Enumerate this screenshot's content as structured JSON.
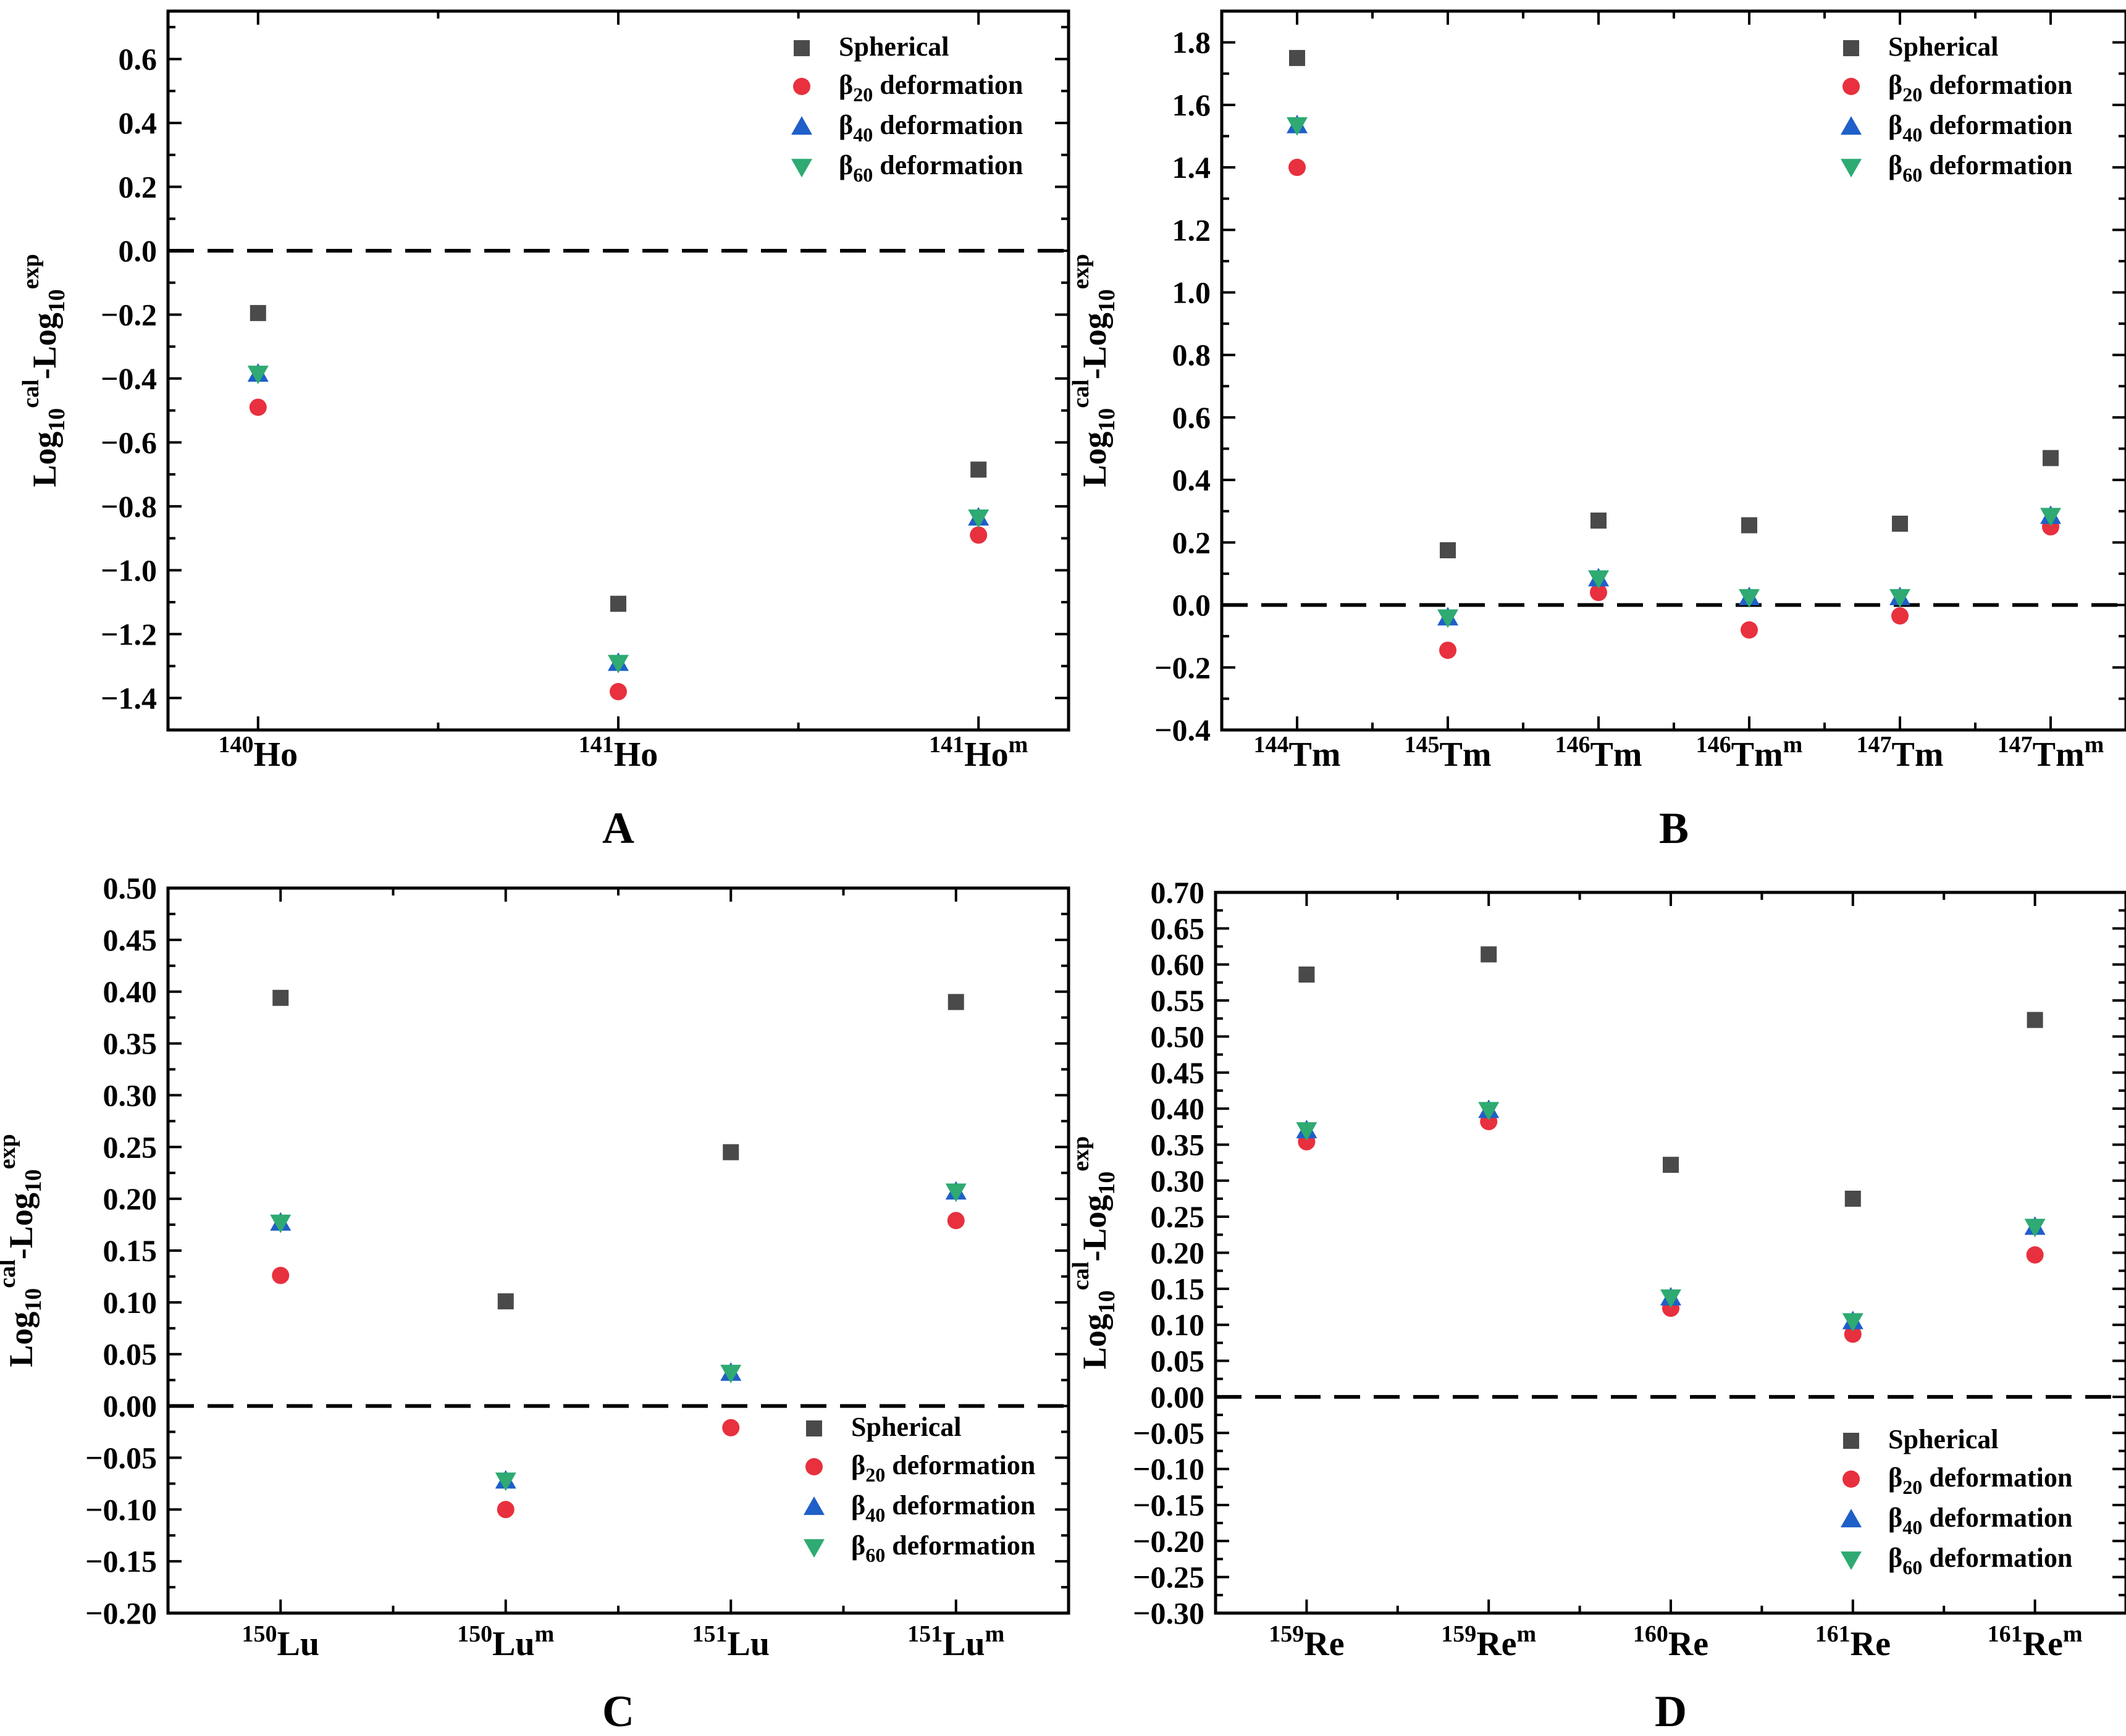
{
  "colors": {
    "spherical": "#4a4a4a",
    "beta20": "#e8303e",
    "beta40": "#1f5fc8",
    "beta60": "#2eaa72"
  },
  "legend": {
    "spherical": "Spherical",
    "beta_symbol": "β",
    "beta20_sub": "20",
    "beta40_sub": "40",
    "beta60_sub": "60",
    "deformation": " deformation"
  },
  "ylabel": {
    "part1": "Log",
    "sub1": "10",
    "sup1": "cal",
    "part2": "-Log",
    "sub2": "10",
    "sup2": "exp"
  },
  "chart_data": [
    {
      "panel": "A",
      "type": "scatter",
      "ylim": [
        -1.5,
        0.75
      ],
      "yticks": [
        "0.6",
        "0.4",
        "0.2",
        "0.0",
        "−0.2",
        "−0.4",
        "−0.6",
        "−0.8",
        "−1.0",
        "−1.2",
        "−1.4"
      ],
      "ytick_values": [
        0.6,
        0.4,
        0.2,
        0.0,
        -0.2,
        -0.4,
        -0.6,
        -0.8,
        -1.0,
        -1.2,
        -1.4
      ],
      "categories": [
        {
          "sup": "140",
          "base": "Ho",
          "m": ""
        },
        {
          "sup": "141",
          "base": "Ho",
          "m": ""
        },
        {
          "sup": "141",
          "base": "Ho",
          "m": "m"
        }
      ],
      "legend_position": "top-right",
      "series": [
        {
          "name": "Spherical",
          "values": [
            -0.195,
            -1.105,
            -0.685
          ]
        },
        {
          "name": "β20 deformation",
          "values": [
            -0.49,
            -1.38,
            -0.89
          ]
        },
        {
          "name": "β40 deformation",
          "values": [
            -0.385,
            -1.29,
            -0.835
          ]
        },
        {
          "name": "β60 deformation",
          "values": [
            -0.385,
            -1.29,
            -0.835
          ]
        }
      ]
    },
    {
      "panel": "B",
      "type": "scatter",
      "ylim": [
        -0.4,
        1.9
      ],
      "yticks": [
        "1.8",
        "1.6",
        "1.4",
        "1.2",
        "1.0",
        "0.8",
        "0.6",
        "0.4",
        "0.2",
        "0.0",
        "−0.2",
        "−0.4"
      ],
      "ytick_values": [
        1.8,
        1.6,
        1.4,
        1.2,
        1.0,
        0.8,
        0.6,
        0.4,
        0.2,
        0.0,
        -0.2,
        -0.4
      ],
      "categories": [
        {
          "sup": "144",
          "base": "Tm",
          "m": ""
        },
        {
          "sup": "145",
          "base": "Tm",
          "m": ""
        },
        {
          "sup": "146",
          "base": "Tm",
          "m": ""
        },
        {
          "sup": "146",
          "base": "Tm",
          "m": "m"
        },
        {
          "sup": "147",
          "base": "Tm",
          "m": ""
        },
        {
          "sup": "147",
          "base": "Tm",
          "m": "m"
        }
      ],
      "legend_position": "top-right",
      "series": [
        {
          "name": "Spherical",
          "values": [
            1.75,
            0.175,
            0.27,
            0.255,
            0.26,
            0.47
          ]
        },
        {
          "name": "β20 deformation",
          "values": [
            1.4,
            -0.145,
            0.04,
            -0.08,
            -0.035,
            0.25
          ]
        },
        {
          "name": "β40 deformation",
          "values": [
            1.535,
            -0.04,
            0.085,
            0.025,
            0.025,
            0.285
          ]
        },
        {
          "name": "β60 deformation",
          "values": [
            1.535,
            -0.04,
            0.085,
            0.025,
            0.025,
            0.285
          ]
        }
      ]
    },
    {
      "panel": "C",
      "type": "scatter",
      "ylim": [
        -0.2,
        0.5
      ],
      "yticks": [
        "0.50",
        "0.45",
        "0.40",
        "0.35",
        "0.30",
        "0.25",
        "0.20",
        "0.15",
        "0.10",
        "0.05",
        "0.00",
        "−0.05",
        "−0.10",
        "−0.15",
        "−0.20"
      ],
      "ytick_values": [
        0.5,
        0.45,
        0.4,
        0.35,
        0.3,
        0.25,
        0.2,
        0.15,
        0.1,
        0.05,
        0.0,
        -0.05,
        -0.1,
        -0.15,
        -0.2
      ],
      "categories": [
        {
          "sup": "150",
          "base": "Lu",
          "m": ""
        },
        {
          "sup": "150",
          "base": "Lu",
          "m": "m"
        },
        {
          "sup": "151",
          "base": "Lu",
          "m": ""
        },
        {
          "sup": "151",
          "base": "Lu",
          "m": "m"
        }
      ],
      "legend_position": "bottom-right",
      "series": [
        {
          "name": "Spherical",
          "values": [
            0.394,
            0.101,
            0.245,
            0.39
          ]
        },
        {
          "name": "β20 deformation",
          "values": [
            0.126,
            -0.1,
            -0.021,
            0.179
          ]
        },
        {
          "name": "β40 deformation",
          "values": [
            0.177,
            -0.072,
            0.032,
            0.207
          ]
        },
        {
          "name": "β60 deformation",
          "values": [
            0.177,
            -0.072,
            0.032,
            0.207
          ]
        }
      ]
    },
    {
      "panel": "D",
      "type": "scatter",
      "ylim": [
        -0.3,
        0.7
      ],
      "yticks": [
        "0.70",
        "0.65",
        "0.60",
        "0.55",
        "0.50",
        "0.45",
        "0.40",
        "0.35",
        "0.30",
        "0.25",
        "0.20",
        "0.15",
        "0.10",
        "0.05",
        "0.00",
        "−0.05",
        "−0.10",
        "−0.15",
        "−0.20",
        "−0.25",
        "−0.30"
      ],
      "ytick_values": [
        0.7,
        0.65,
        0.6,
        0.55,
        0.5,
        0.45,
        0.4,
        0.35,
        0.3,
        0.25,
        0.2,
        0.15,
        0.1,
        0.05,
        0.0,
        -0.05,
        -0.1,
        -0.15,
        -0.2,
        -0.25,
        -0.3
      ],
      "categories": [
        {
          "sup": "159",
          "base": "Re",
          "m": ""
        },
        {
          "sup": "159",
          "base": "Re",
          "m": "m"
        },
        {
          "sup": "160",
          "base": "Re",
          "m": ""
        },
        {
          "sup": "161",
          "base": "Re",
          "m": ""
        },
        {
          "sup": "161",
          "base": "Re",
          "m": "m"
        }
      ],
      "legend_position": "bottom-right",
      "series": [
        {
          "name": "Spherical",
          "values": [
            0.586,
            0.614,
            0.322,
            0.275,
            0.523
          ]
        },
        {
          "name": "β20 deformation",
          "values": [
            0.354,
            0.382,
            0.123,
            0.087,
            0.197
          ]
        },
        {
          "name": "β40 deformation",
          "values": [
            0.37,
            0.398,
            0.138,
            0.105,
            0.236
          ]
        },
        {
          "name": "β60 deformation",
          "values": [
            0.37,
            0.398,
            0.138,
            0.105,
            0.236
          ]
        }
      ]
    }
  ]
}
